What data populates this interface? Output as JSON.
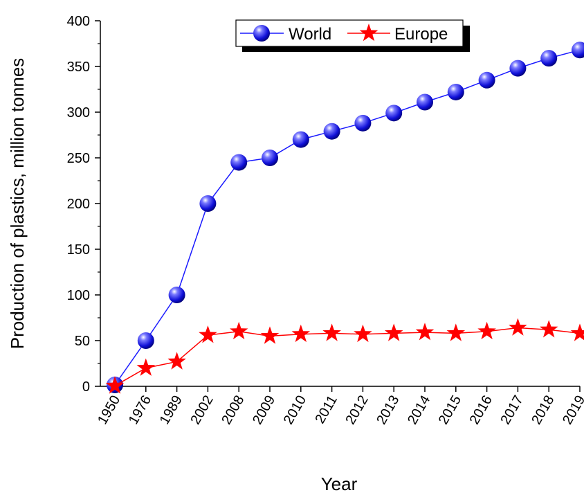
{
  "chart_data": {
    "type": "line",
    "categories": [
      "1950",
      "1976",
      "1989",
      "2002",
      "2008",
      "2009",
      "2010",
      "2011",
      "2012",
      "2013",
      "2014",
      "2015",
      "2016",
      "2017",
      "2018",
      "2019"
    ],
    "series": [
      {
        "name": "World",
        "color": "#1a1aff",
        "marker": "sphere",
        "values": [
          1.5,
          50,
          100,
          200,
          245,
          250,
          270,
          279,
          288,
          299,
          311,
          322,
          335,
          348,
          359,
          368
        ]
      },
      {
        "name": "Europe",
        "color": "#ff0000",
        "marker": "star",
        "values": [
          0.5,
          20,
          27,
          56,
          60,
          55,
          57,
          58,
          57,
          58,
          59,
          58,
          60,
          64,
          62,
          58
        ]
      }
    ],
    "xlabel": "Year",
    "ylabel": "Production of plastics, million tonnes",
    "ylim": [
      0,
      400
    ],
    "yticks": [
      0,
      50,
      100,
      150,
      200,
      250,
      300,
      350,
      400
    ],
    "grid": false,
    "legend_position": "top-center"
  }
}
